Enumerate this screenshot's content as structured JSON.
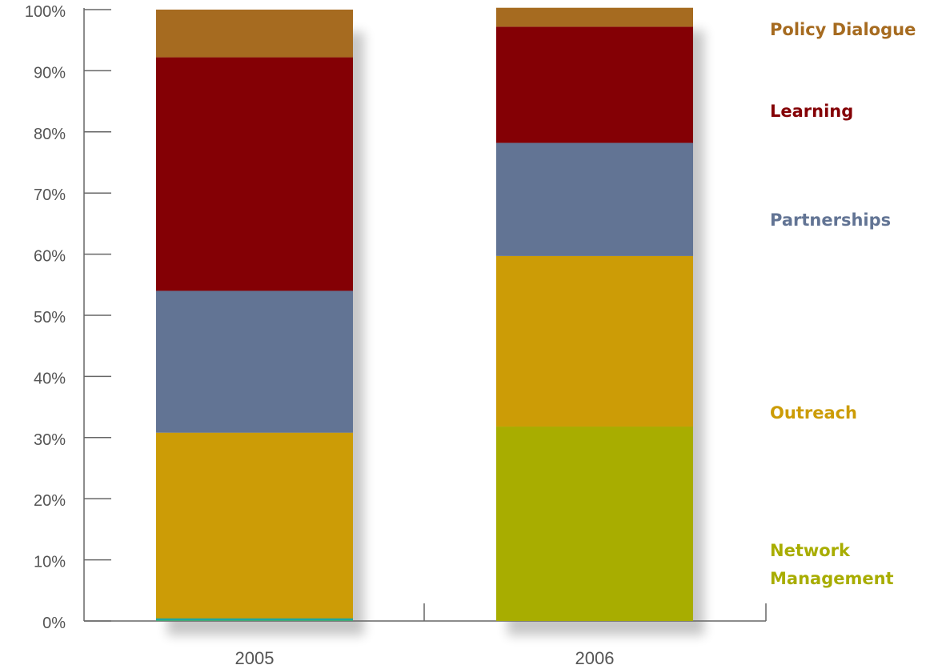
{
  "chart_data": {
    "type": "bar",
    "stacked": true,
    "percent": true,
    "title": "",
    "xlabel": "",
    "ylabel": "",
    "ylim": [
      0,
      100
    ],
    "yticks": [
      "0%",
      "10%",
      "20%",
      "30%",
      "40%",
      "50%",
      "60%",
      "70%",
      "80%",
      "90%",
      "100%"
    ],
    "categories": [
      "2005",
      "2006"
    ],
    "grid": false,
    "legend_position": "right",
    "series": [
      {
        "name": "Network Management",
        "color": "#a8ad00",
        "values": [
          0.3,
          31.8
        ]
      },
      {
        "name": "Outreach",
        "color": "#cc9c06",
        "values": [
          30.5,
          27.9
        ]
      },
      {
        "name": "Partnerships",
        "color": "#627494",
        "values": [
          23.2,
          18.5
        ]
      },
      {
        "name": "Learning",
        "color": "#840005",
        "values": [
          38.2,
          19.0
        ]
      },
      {
        "name": "Policy Dialogue",
        "color": "#a66b20",
        "values": [
          7.8,
          3.1
        ]
      }
    ],
    "extra_marks": [
      {
        "category": "2005",
        "color": "#1fa6a0",
        "values": [
          0.3
        ]
      }
    ]
  }
}
